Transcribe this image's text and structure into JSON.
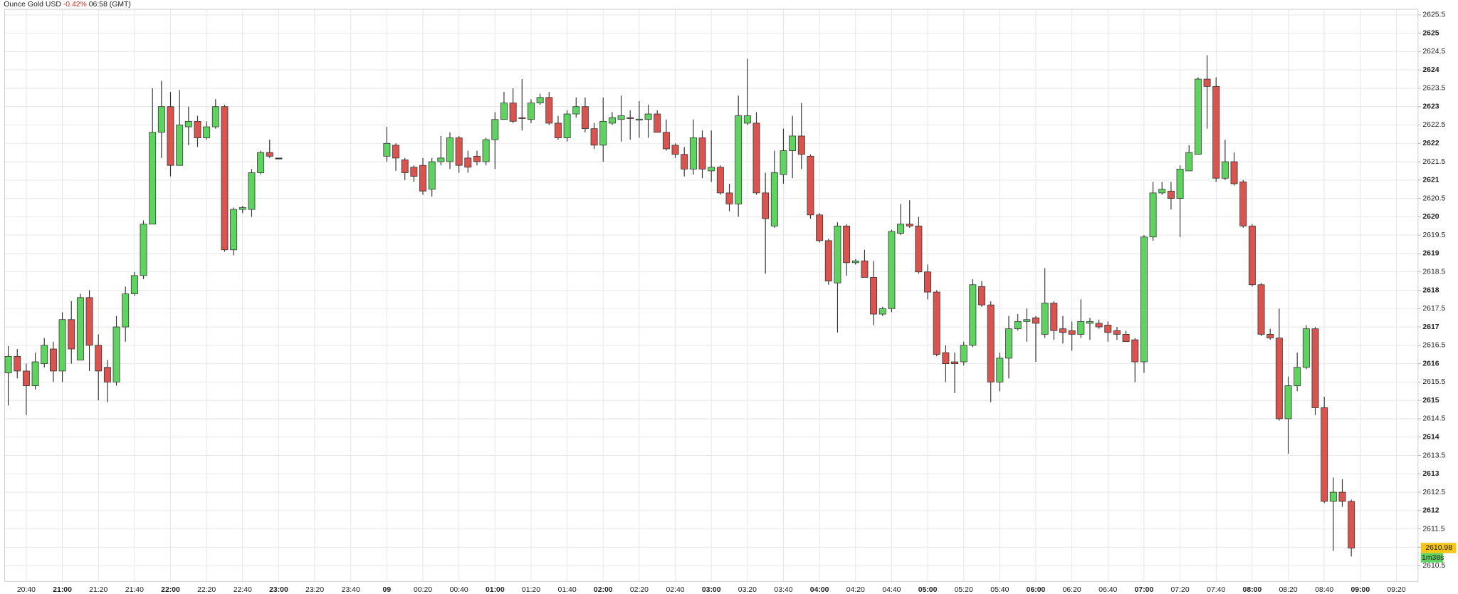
{
  "chart_data": {
    "type": "candlestick",
    "title": "Ounce Gold USD",
    "change": "-0.42%",
    "time": "06:58 (GMT)",
    "last_price": 2610.98,
    "countdown": "1m38s",
    "up_color": "#5fd35f",
    "down_color": "#d9534f",
    "change_color": "#d9302a",
    "grid": true,
    "ylim": [
      2610.07,
      2625.65
    ],
    "yticks": [
      2610.5,
      2611,
      2611.5,
      2612,
      2612.5,
      2613,
      2613.5,
      2614,
      2614.5,
      2615,
      2615.5,
      2616,
      2616.5,
      2617,
      2617.5,
      2618,
      2618.5,
      2619,
      2619.5,
      2620,
      2620.5,
      2621,
      2621.5,
      2622,
      2622.5,
      2623,
      2623.5,
      2624,
      2624.5,
      2625,
      2625.5
    ],
    "xlim": [
      "20:28",
      "09:32"
    ],
    "xticks": [
      "20:40",
      "21:00",
      "21:20",
      "21:40",
      "22:00",
      "22:20",
      "22:40",
      "23:00",
      "23:20",
      "23:40",
      {
        "value": "00:00",
        "label": "09"
      },
      "00:20",
      "00:40",
      "01:00",
      "01:20",
      "01:40",
      "02:00",
      "02:20",
      "02:40",
      "03:00",
      "03:20",
      "03:40",
      "04:00",
      "04:20",
      "04:40",
      "05:00",
      "05:20",
      "05:40",
      "06:00",
      "06:20",
      "06:40",
      "07:00",
      "07:20",
      "07:40",
      "08:00",
      "08:20",
      "08:40",
      "09:00",
      "09:20"
    ],
    "x": [
      "20:30",
      "20:35",
      "20:40",
      "20:45",
      "20:50",
      "20:55",
      "21:00",
      "21:05",
      "21:10",
      "21:15",
      "21:20",
      "21:25",
      "21:30",
      "21:35",
      "21:40",
      "21:45",
      "21:50",
      "21:55",
      "22:00",
      "22:05",
      "22:10",
      "22:15",
      "22:20",
      "22:25",
      "22:30",
      "22:35",
      "22:40",
      "22:45",
      "22:50",
      "22:55",
      "23:00",
      "00:00",
      "00:05",
      "00:10",
      "00:15",
      "00:20",
      "00:25",
      "00:30",
      "00:35",
      "00:40",
      "00:45",
      "00:50",
      "00:55",
      "01:00",
      "01:05",
      "01:10",
      "01:15",
      "01:20",
      "01:25",
      "01:30",
      "01:35",
      "01:40",
      "01:45",
      "01:50",
      "01:55",
      "02:00",
      "02:05",
      "02:10",
      "02:15",
      "02:20",
      "02:25",
      "02:30",
      "02:35",
      "02:40",
      "02:45",
      "02:50",
      "02:55",
      "03:00",
      "03:05",
      "03:10",
      "03:15",
      "03:20",
      "03:25",
      "03:30",
      "03:35",
      "03:40",
      "03:45",
      "03:50",
      "03:55",
      "04:00",
      "04:05",
      "04:10",
      "04:15",
      "04:20",
      "04:25",
      "04:30",
      "04:35",
      "04:40",
      "04:45",
      "04:50",
      "04:55",
      "05:00",
      "05:05",
      "05:10",
      "05:15",
      "05:20",
      "05:25",
      "05:30",
      "05:35",
      "05:40",
      "05:45",
      "05:50",
      "05:55",
      "06:00",
      "06:05",
      "06:10",
      "06:15",
      "06:20",
      "06:25",
      "06:30",
      "06:35",
      "06:40",
      "06:45",
      "06:50",
      "06:55",
      "07:00",
      "07:05",
      "07:10",
      "07:15",
      "07:20",
      "07:25",
      "07:30",
      "07:35",
      "07:40",
      "07:45",
      "07:50",
      "07:55",
      "08:00",
      "08:05",
      "08:10",
      "08:15",
      "08:20",
      "08:25",
      "08:30",
      "08:35",
      "08:40",
      "08:45",
      "08:50",
      "08:55"
    ],
    "open": [
      2615.75,
      2616.2,
      2615.8,
      2615.4,
      2616.0,
      2616.4,
      2615.8,
      2617.2,
      2616.1,
      2617.8,
      2616.5,
      2615.9,
      2615.5,
      2617.0,
      2617.9,
      2618.4,
      2619.8,
      2622.3,
      2623.0,
      2621.4,
      2622.45,
      2622.6,
      2622.15,
      2622.45,
      2623.0,
      2619.1,
      2620.2,
      2620.2,
      2621.2,
      2621.75,
      2621.6,
      2621.65,
      2621.95,
      2621.55,
      2621.35,
      2621.4,
      2620.75,
      2621.5,
      2621.5,
      2622.15,
      2621.6,
      2621.65,
      2621.5,
      2622.1,
      2622.65,
      2623.1,
      2622.7,
      2622.65,
      2623.1,
      2623.25,
      2622.55,
      2622.15,
      2622.8,
      2623.0,
      2622.4,
      2621.95,
      2622.55,
      2622.65,
      2622.7,
      2622.65,
      2622.65,
      2622.8,
      2622.3,
      2621.95,
      2621.7,
      2621.3,
      2622.15,
      2621.25,
      2621.35,
      2620.65,
      2620.35,
      2622.55,
      2622.55,
      2620.65,
      2619.75,
      2621.15,
      2621.8,
      2622.2,
      2621.65,
      2620.05,
      2619.35,
      2618.2,
      2619.75,
      2618.75,
      2618.8,
      2618.35,
      2617.35,
      2617.5,
      2619.55,
      2619.8,
      2619.75,
      2618.5,
      2617.95,
      2616.3,
      2616.05,
      2616.05,
      2616.5,
      2618.1,
      2617.6,
      2615.5,
      2616.15,
      2616.95,
      2617.15,
      2617.25,
      2616.8,
      2617.65,
      2616.95,
      2616.9,
      2616.8,
      2617.1,
      2617.1,
      2617.05,
      2616.9,
      2616.8,
      2616.65,
      2616.05,
      2619.45,
      2620.65,
      2620.7,
      2620.5,
      2621.25,
      2621.7,
      2623.75,
      2623.55,
      2621.05,
      2621.5,
      2620.95,
      2619.75,
      2618.15,
      2616.8,
      2616.7,
      2614.5,
      2615.4,
      2615.9,
      2616.95,
      2614.8,
      2612.25,
      2612.5,
      2612.25
    ],
    "high": [
      2616.48,
      2616.4,
      2616.0,
      2616.3,
      2616.7,
      2616.6,
      2617.4,
      2617.7,
      2617.9,
      2618.0,
      2616.8,
      2616.1,
      2617.3,
      2618.1,
      2618.5,
      2619.9,
      2623.5,
      2623.7,
      2623.4,
      2623.45,
      2623.0,
      2622.75,
      2622.6,
      2623.2,
      2623.05,
      2620.25,
      2620.3,
      2621.3,
      2621.8,
      2622.1,
      2621.6,
      2622.45,
      2622.0,
      2621.6,
      2621.4,
      2621.6,
      2621.6,
      2622.2,
      2622.3,
      2622.2,
      2621.8,
      2621.8,
      2622.15,
      2622.85,
      2623.4,
      2623.5,
      2623.75,
      2623.2,
      2623.35,
      2623.4,
      2622.75,
      2622.9,
      2623.25,
      2623.25,
      2622.55,
      2623.25,
      2622.85,
      2623.3,
      2622.9,
      2623.15,
      2623.05,
      2622.9,
      2622.65,
      2622.0,
      2621.9,
      2622.65,
      2622.35,
      2622.35,
      2621.4,
      2620.9,
      2623.3,
      2624.3,
      2622.85,
      2621.2,
      2621.8,
      2622.4,
      2622.75,
      2623.1,
      2621.7,
      2620.1,
      2619.4,
      2619.85,
      2619.8,
      2618.85,
      2619.1,
      2618.8,
      2617.55,
      2619.65,
      2620.35,
      2620.45,
      2620.0,
      2618.7,
      2618.0,
      2616.5,
      2616.3,
      2616.6,
      2618.3,
      2618.25,
      2617.7,
      2616.3,
      2617.3,
      2617.35,
      2617.5,
      2617.3,
      2618.6,
      2617.7,
      2617.3,
      2617.15,
      2617.75,
      2617.25,
      2617.2,
      2617.15,
      2617.0,
      2616.9,
      2616.7,
      2619.5,
      2620.95,
      2620.95,
      2620.95,
      2621.4,
      2621.95,
      2623.8,
      2624.4,
      2623.8,
      2622.1,
      2621.75,
      2621.0,
      2619.8,
      2618.2,
      2616.95,
      2617.5,
      2615.65,
      2616.3,
      2617.05,
      2617.0,
      2615.1,
      2612.9,
      2612.85,
      2612.3
    ],
    "low": [
      2614.86,
      2615.6,
      2614.6,
      2615.3,
      2615.9,
      2615.5,
      2615.5,
      2616.0,
      2616.1,
      2615.8,
      2615.0,
      2614.95,
      2615.4,
      2616.6,
      2617.85,
      2618.3,
      2619.8,
      2621.6,
      2621.1,
      2621.4,
      2621.95,
      2621.9,
      2622.1,
      2622.4,
      2619.05,
      2618.95,
      2620.1,
      2620.0,
      2621.15,
      2621.6,
      2621.6,
      2621.5,
      2621.25,
      2621.0,
      2620.95,
      2620.6,
      2620.55,
      2621.4,
      2621.3,
      2621.2,
      2621.2,
      2621.4,
      2621.4,
      2621.3,
      2622.65,
      2622.55,
      2622.35,
      2622.55,
      2623.05,
      2622.5,
      2622.1,
      2622.05,
      2622.7,
      2622.3,
      2621.85,
      2621.5,
      2622.5,
      2622.05,
      2622.1,
      2622.15,
      2622.15,
      2622.3,
      2621.8,
      2621.6,
      2621.1,
      2621.15,
      2621.05,
      2620.95,
      2620.6,
      2620.15,
      2620.0,
      2622.5,
      2620.6,
      2618.45,
      2619.7,
      2620.9,
      2621.05,
      2621.3,
      2619.95,
      2619.3,
      2618.15,
      2616.85,
      2618.4,
      2618.7,
      2618.35,
      2617.05,
      2617.3,
      2617.4,
      2619.5,
      2619.7,
      2618.45,
      2617.75,
      2616.2,
      2615.5,
      2615.2,
      2615.95,
      2616.45,
      2617.55,
      2614.95,
      2615.25,
      2615.6,
      2616.9,
      2616.6,
      2616.05,
      2616.7,
      2616.65,
      2616.55,
      2616.35,
      2616.7,
      2616.65,
      2616.95,
      2616.6,
      2616.65,
      2616.6,
      2615.5,
      2615.75,
      2619.35,
      2620.6,
      2620.2,
      2619.45,
      2621.25,
      2621.7,
      2622.4,
      2620.95,
      2621.0,
      2620.85,
      2619.7,
      2618.1,
      2616.75,
      2616.65,
      2614.45,
      2613.55,
      2615.25,
      2615.85,
      2614.6,
      2612.2,
      2610.9,
      2612.1,
      2610.75
    ],
    "close": [
      2616.2,
      2615.8,
      2615.4,
      2616.05,
      2616.5,
      2615.8,
      2617.2,
      2616.4,
      2617.8,
      2616.5,
      2615.8,
      2615.5,
      2617.0,
      2617.9,
      2618.4,
      2619.8,
      2622.3,
      2623.0,
      2621.4,
      2622.5,
      2622.6,
      2622.15,
      2622.45,
      2623.0,
      2619.1,
      2620.2,
      2620.25,
      2621.2,
      2621.75,
      2621.65,
      2621.6,
      2622.0,
      2621.6,
      2621.2,
      2621.1,
      2620.7,
      2621.5,
      2621.6,
      2622.15,
      2621.4,
      2621.35,
      2621.5,
      2622.1,
      2622.65,
      2623.1,
      2622.6,
      2622.68,
      2623.1,
      2623.25,
      2622.55,
      2622.15,
      2622.8,
      2623.0,
      2622.4,
      2621.95,
      2622.6,
      2622.7,
      2622.75,
      2622.68,
      2622.66,
      2622.8,
      2622.3,
      2621.85,
      2621.7,
      2621.3,
      2622.15,
      2621.3,
      2621.35,
      2620.65,
      2620.35,
      2622.75,
      2622.75,
      2620.65,
      2619.95,
      2621.2,
      2621.8,
      2622.2,
      2621.7,
      2620.05,
      2619.35,
      2618.25,
      2619.75,
      2618.75,
      2618.8,
      2618.35,
      2617.35,
      2617.5,
      2619.6,
      2619.8,
      2619.75,
      2618.5,
      2617.95,
      2616.25,
      2616.0,
      2616.0,
      2616.5,
      2618.15,
      2617.6,
      2615.5,
      2616.15,
      2616.95,
      2617.15,
      2617.2,
      2617.1,
      2617.65,
      2616.9,
      2616.85,
      2616.8,
      2617.15,
      2617.15,
      2617.0,
      2616.85,
      2616.8,
      2616.6,
      2616.05,
      2619.45,
      2620.65,
      2620.75,
      2620.5,
      2621.3,
      2621.75,
      2623.75,
      2623.55,
      2621.05,
      2621.5,
      2620.9,
      2619.75,
      2618.15,
      2616.8,
      2616.7,
      2614.5,
      2615.4,
      2615.9,
      2616.95,
      2614.8,
      2612.25,
      2612.5,
      2612.25,
      2610.98
    ]
  }
}
